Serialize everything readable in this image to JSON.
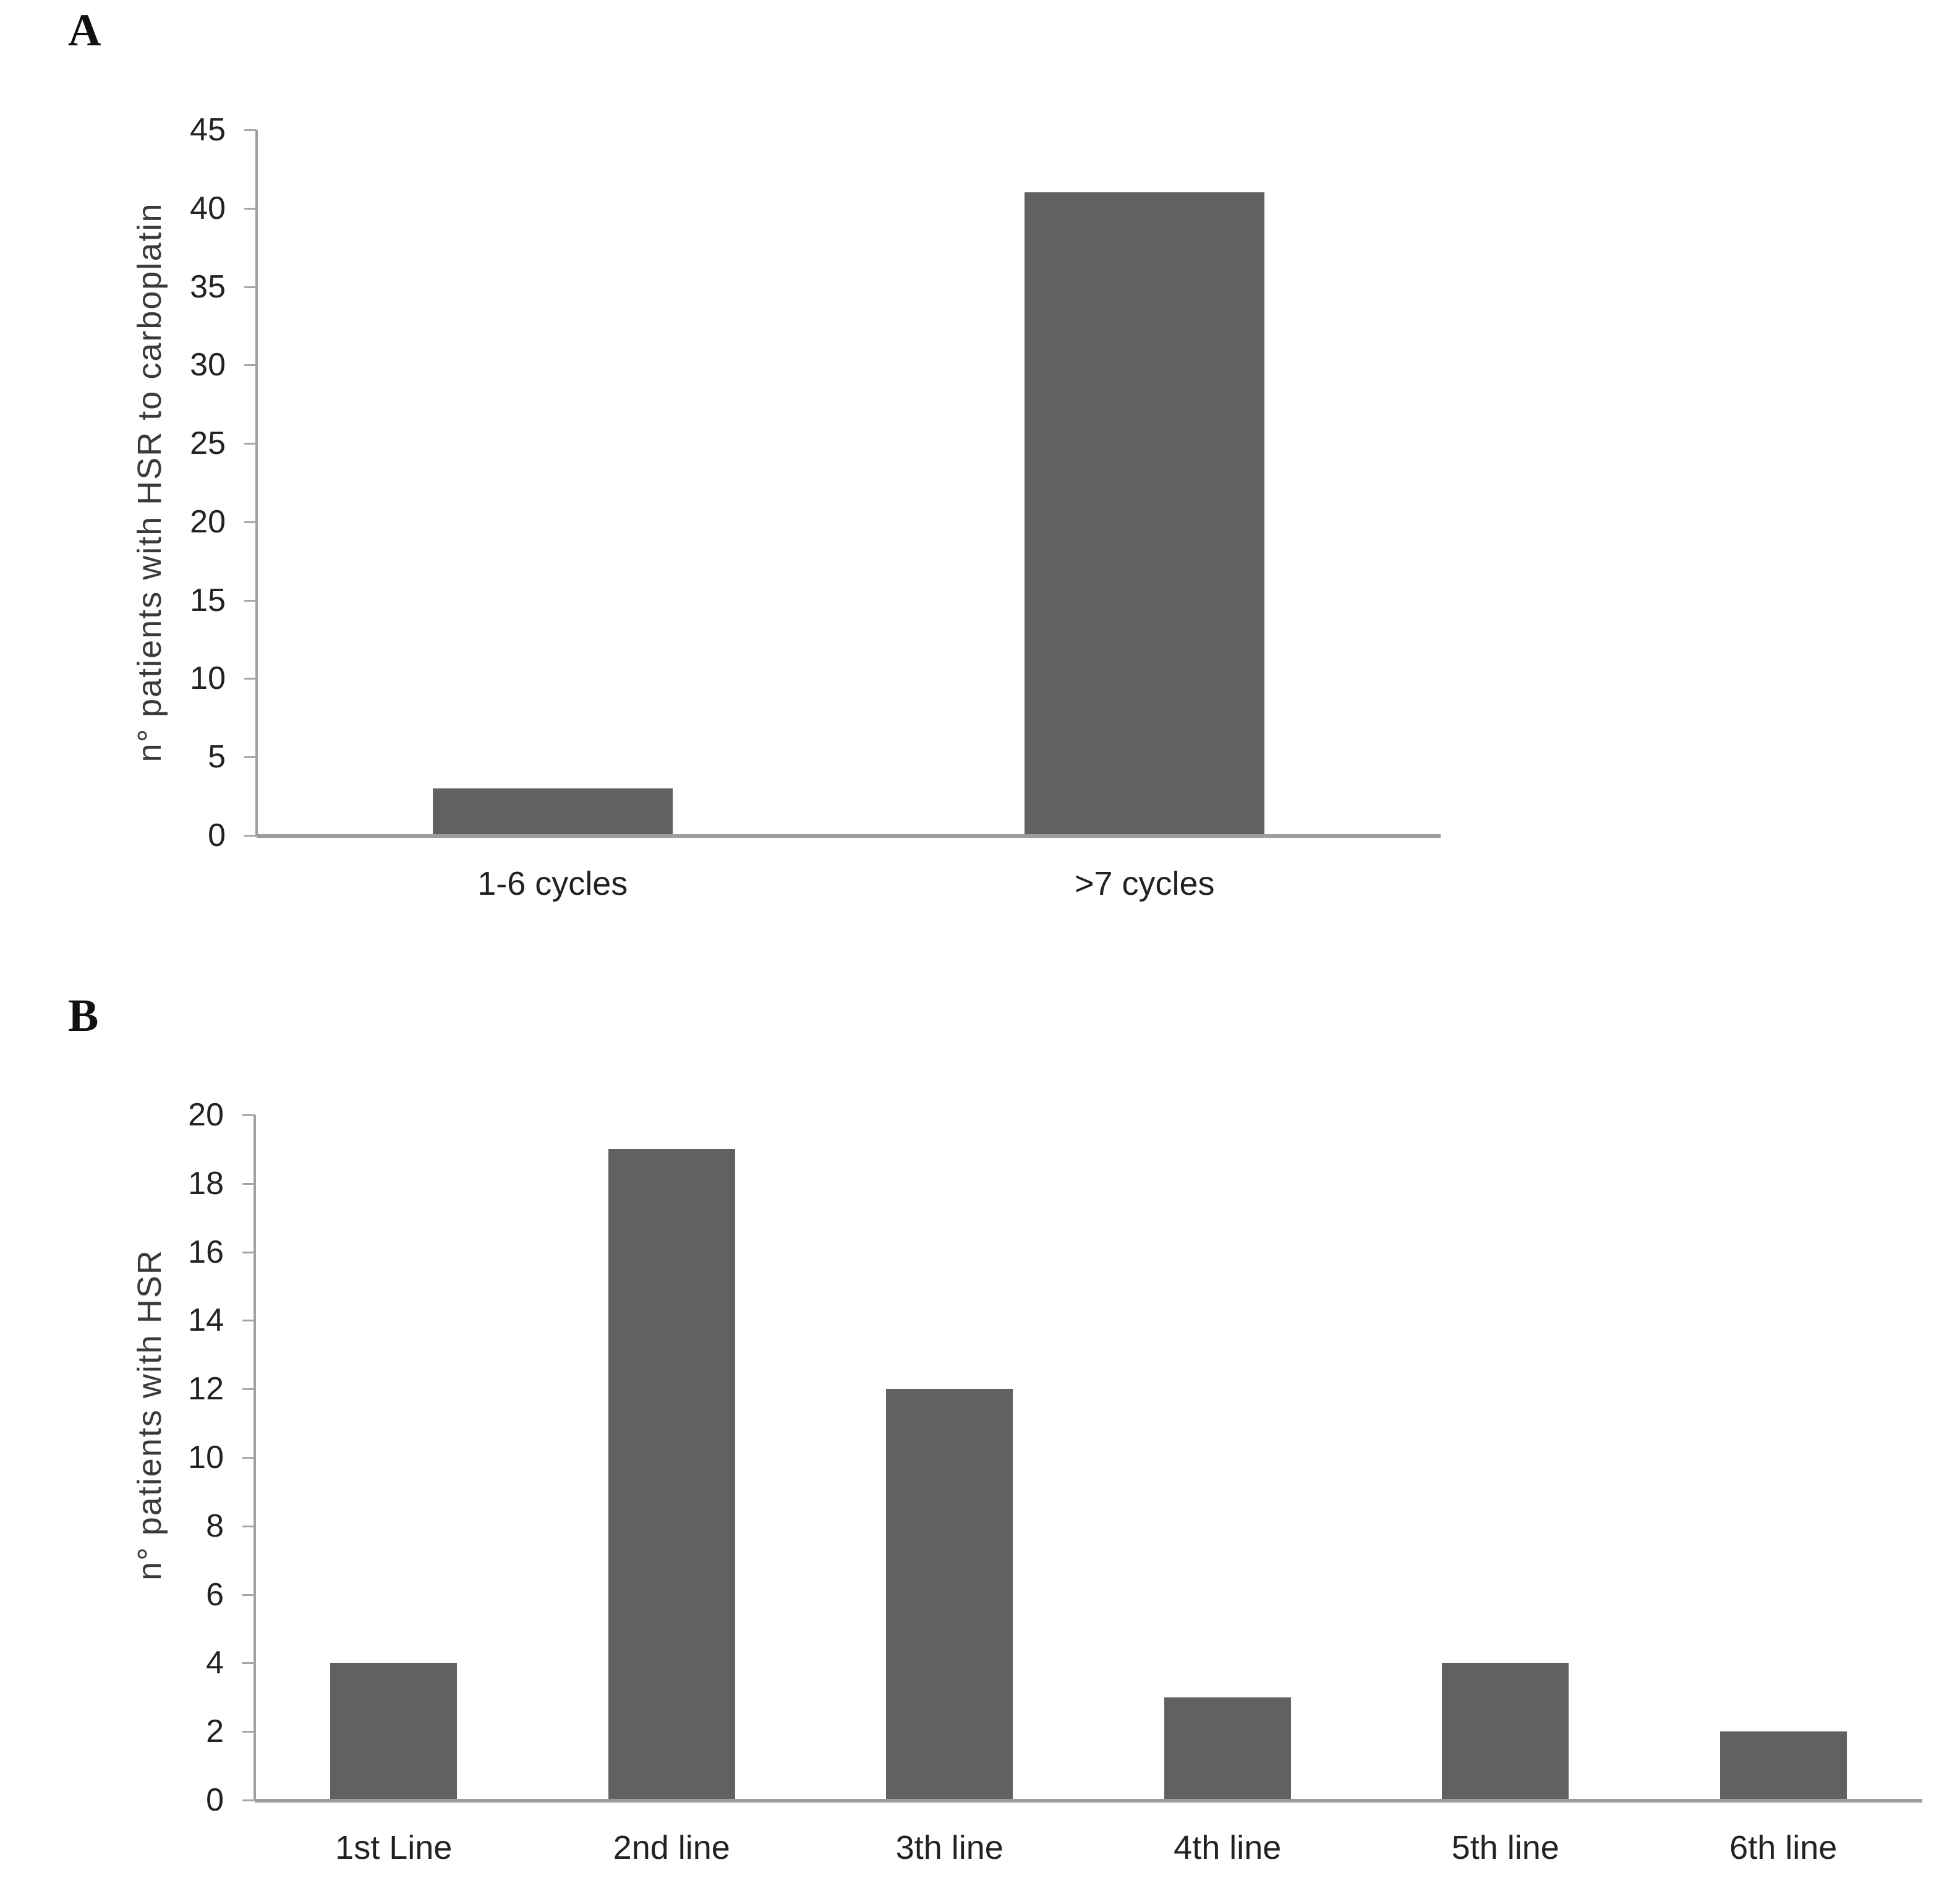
{
  "figure_type": "two-panel bar figure",
  "colors": {
    "bar": "#616161",
    "axis": "#a0a0a0",
    "tick": "#a6a6a6",
    "text": "#222222"
  },
  "chart_data": [
    {
      "type": "bar",
      "panel_letter": "A",
      "ylabel": "n° patients with HSR to carboplatin",
      "xlabel": "",
      "title": "",
      "categories": [
        "1-6 cycles",
        ">7 cycles"
      ],
      "values": [
        3,
        41
      ],
      "ylim": [
        0,
        45
      ],
      "ytick_step": 5,
      "ytick_labels": [
        "0",
        "5",
        "10",
        "15",
        "20",
        "25",
        "30",
        "35",
        "40",
        "45"
      ],
      "grid": false,
      "legend": "none",
      "bar_color": "#616161"
    },
    {
      "type": "bar",
      "panel_letter": "B",
      "ylabel": "n° patients with HSR",
      "xlabel": "",
      "title": "",
      "categories": [
        "1st Line",
        "2nd line",
        "3th line",
        "4th line",
        "5th line",
        "6th line"
      ],
      "values": [
        4,
        19,
        12,
        3,
        4,
        2
      ],
      "ylim": [
        0,
        20
      ],
      "ytick_step": 2,
      "ytick_labels": [
        "0",
        "2",
        "4",
        "6",
        "8",
        "10",
        "12",
        "14",
        "16",
        "18",
        "20"
      ],
      "grid": false,
      "legend": "none",
      "bar_color": "#616161"
    }
  ]
}
